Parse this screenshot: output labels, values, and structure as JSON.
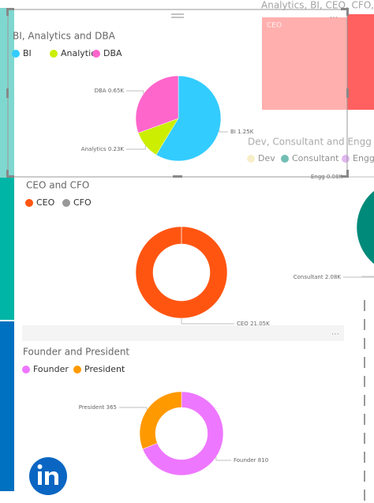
{
  "chart_data": [
    {
      "type": "treemap",
      "title": "Analytics, BI, CEO, CFO, DBA",
      "categories": [
        "CEO",
        null
      ],
      "colors": [
        "#ffb0ae",
        "#ff6060"
      ]
    },
    {
      "type": "pie",
      "title": "BI, Analytics and DBA",
      "categories": [
        "BI",
        "Analytics",
        "DBA"
      ],
      "values": [
        1250,
        230,
        650
      ],
      "value_labels": [
        "1.25K",
        "0.23K",
        "0.65K"
      ],
      "colors": [
        "#33ccff",
        "#ccee00",
        "#ff66cc"
      ]
    },
    {
      "type": "pie",
      "title": "Dev, Consultant and Engg",
      "categories": [
        "Dev",
        "Consultant",
        "Engg"
      ],
      "values": [
        0,
        2080,
        80
      ],
      "value_labels": [
        null,
        "2.08K",
        "0.08K"
      ],
      "colors": [
        "#f2e39e",
        "#008a7a",
        "#c77fe6"
      ]
    },
    {
      "type": "donut",
      "title": "CEO and CFO",
      "categories": [
        "CEO",
        "CFO"
      ],
      "values": [
        21050,
        0
      ],
      "value_labels": [
        "21.05K",
        null
      ],
      "colors": [
        "#ff5511",
        "#999999"
      ]
    },
    {
      "type": "donut",
      "title": "Founder and President",
      "categories": [
        "Founder",
        "President"
      ],
      "values": [
        810,
        365
      ],
      "colors": [
        "#ee77ff",
        "#ff9900"
      ]
    }
  ]
}
